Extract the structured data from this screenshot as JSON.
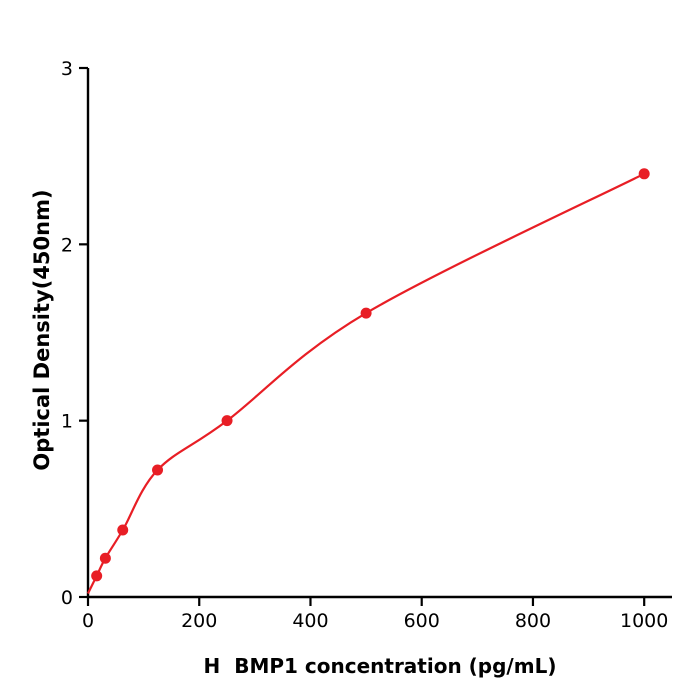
{
  "chart_data": {
    "type": "scatter",
    "title": "",
    "xlabel": "H  BMP1 concentration (pg/mL)",
    "ylabel": "Optical Density(450nm)",
    "x": [
      15.6,
      31.25,
      62.5,
      125,
      250,
      500,
      1000
    ],
    "y": [
      0.12,
      0.22,
      0.38,
      0.72,
      1.0,
      1.61,
      2.4
    ],
    "curve_start": {
      "x": 0,
      "y": 0.02
    },
    "xlim": [
      0,
      1050
    ],
    "ylim": [
      0,
      3
    ],
    "x_ticks": [
      0,
      200,
      400,
      600,
      800,
      1000
    ],
    "y_ticks": [
      0,
      1,
      2,
      3
    ],
    "legend": null,
    "grid": false,
    "point_color": "#e81e25",
    "line_color": "#e81e25",
    "axis_color": "#000000"
  }
}
